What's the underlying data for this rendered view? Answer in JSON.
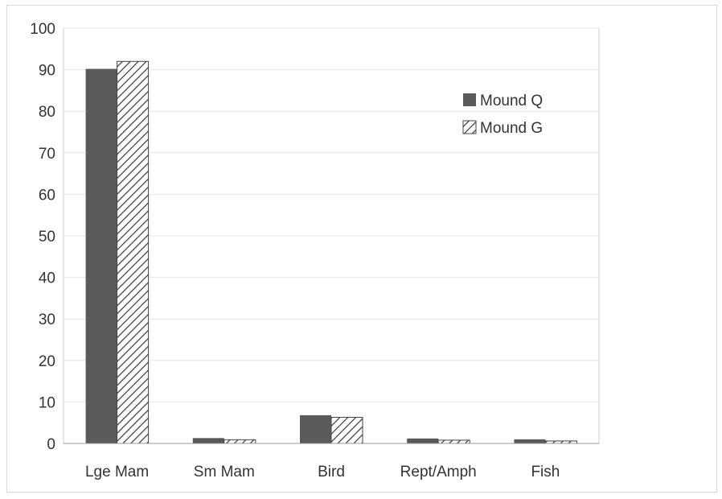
{
  "chart_data": {
    "type": "bar",
    "categories": [
      "Lge Mam",
      "Sm Mam",
      "Bird",
      "Rept/Amph",
      "Fish"
    ],
    "series": [
      {
        "name": "Mound Q",
        "values": [
          90.2,
          1.3,
          6.8,
          1.2,
          1.0
        ],
        "color": "#5a5a5a",
        "pattern": "solid"
      },
      {
        "name": "Mound G",
        "values": [
          92.0,
          0.9,
          6.3,
          0.8,
          0.6
        ],
        "color": "#444444",
        "pattern": "diagonal-hatch"
      }
    ],
    "title": "",
    "xlabel": "",
    "ylabel": "",
    "ylim": [
      0,
      100
    ],
    "yticks": [
      0,
      10,
      20,
      30,
      40,
      50,
      60,
      70,
      80,
      90,
      100
    ],
    "grid": true,
    "legend_position": "top-right"
  }
}
